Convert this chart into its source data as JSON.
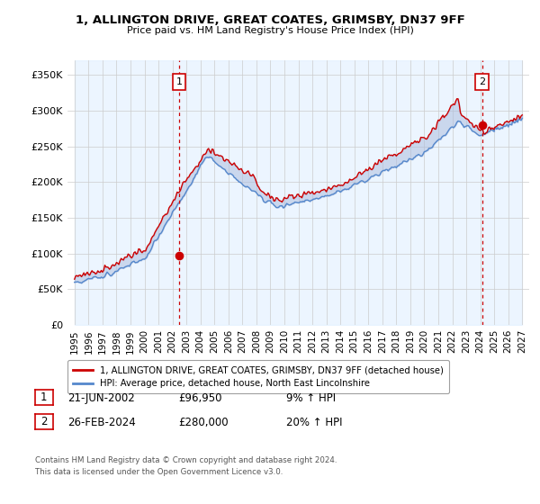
{
  "title": "1, ALLINGTON DRIVE, GREAT COATES, GRIMSBY, DN37 9FF",
  "subtitle": "Price paid vs. HM Land Registry's House Price Index (HPI)",
  "ylabel_values": [
    0,
    50000,
    100000,
    150000,
    200000,
    250000,
    300000,
    350000
  ],
  "ylabel_labels": [
    "£0",
    "£50K",
    "£100K",
    "£150K",
    "£200K",
    "£250K",
    "£300K",
    "£350K"
  ],
  "ylim": [
    0,
    370000
  ],
  "sale1_year": 2002.47,
  "sale1_price": 96950,
  "sale1_label": "1",
  "sale2_year": 2024.15,
  "sale2_price": 280000,
  "sale2_label": "2",
  "legend_line1": "1, ALLINGTON DRIVE, GREAT COATES, GRIMSBY, DN37 9FF (detached house)",
  "legend_line2": "HPI: Average price, detached house, North East Lincolnshire",
  "table_row1_date": "21-JUN-2002",
  "table_row1_price": "£96,950",
  "table_row1_hpi": "9% ↑ HPI",
  "table_row2_date": "26-FEB-2024",
  "table_row2_price": "£280,000",
  "table_row2_hpi": "20% ↑ HPI",
  "footnote1": "Contains HM Land Registry data © Crown copyright and database right 2024.",
  "footnote2": "This data is licensed under the Open Government Licence v3.0.",
  "line_color_red": "#cc0000",
  "line_color_blue": "#5588cc",
  "fill_color_blue": "#aabbdd",
  "background_color": "#ffffff",
  "grid_color": "#cccccc",
  "hatch_start": 2024.15,
  "xlim_left": 1994.5,
  "xlim_right": 2027.5
}
